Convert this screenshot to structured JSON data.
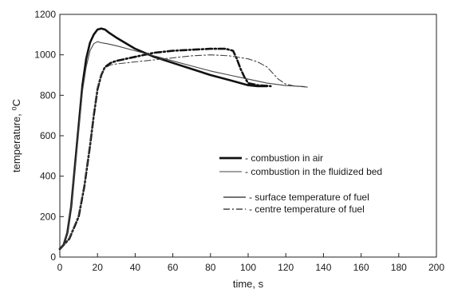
{
  "chart_data": {
    "type": "line",
    "title": "",
    "xlabel": "time, s",
    "ylabel": "temperature, ⁰C",
    "xlim": [
      0,
      200
    ],
    "ylim": [
      0,
      1200
    ],
    "xticks": [
      0,
      20,
      40,
      60,
      80,
      100,
      120,
      140,
      160,
      180,
      200
    ],
    "yticks": [
      0,
      200,
      400,
      600,
      800,
      1000,
      1200
    ],
    "grid": false,
    "legend_position": "center-right",
    "legend": {
      "line_type": [
        {
          "label": "- combustion in air",
          "style": "thick"
        },
        {
          "label": "- combustion in the fluidized bed",
          "style": "thin"
        }
      ],
      "dash_type": [
        {
          "label": "- surface temperature of fuel",
          "style": "solid"
        },
        {
          "label": "- centre temperature of fuel",
          "style": "dashdot"
        }
      ]
    },
    "series": [
      {
        "medium": "air",
        "location": "surface",
        "color": "#111111",
        "points": [
          [
            0,
            40
          ],
          [
            2,
            60
          ],
          [
            4,
            120
          ],
          [
            6,
            250
          ],
          [
            8,
            450
          ],
          [
            10,
            650
          ],
          [
            12,
            850
          ],
          [
            14,
            980
          ],
          [
            16,
            1060
          ],
          [
            18,
            1100
          ],
          [
            20,
            1125
          ],
          [
            22,
            1130
          ],
          [
            24,
            1125
          ],
          [
            26,
            1110
          ],
          [
            30,
            1085
          ],
          [
            40,
            1030
          ],
          [
            50,
            990
          ],
          [
            60,
            960
          ],
          [
            70,
            930
          ],
          [
            80,
            900
          ],
          [
            90,
            875
          ],
          [
            100,
            850
          ],
          [
            105,
            845
          ],
          [
            110,
            845
          ]
        ]
      },
      {
        "medium": "air",
        "location": "centre",
        "color": "#111111",
        "points": [
          [
            0,
            40
          ],
          [
            5,
            90
          ],
          [
            10,
            200
          ],
          [
            13,
            350
          ],
          [
            16,
            550
          ],
          [
            18,
            700
          ],
          [
            20,
            830
          ],
          [
            22,
            900
          ],
          [
            24,
            940
          ],
          [
            27,
            960
          ],
          [
            30,
            970
          ],
          [
            40,
            990
          ],
          [
            50,
            1010
          ],
          [
            60,
            1020
          ],
          [
            70,
            1025
          ],
          [
            80,
            1030
          ],
          [
            88,
            1030
          ],
          [
            92,
            1020
          ],
          [
            94,
            980
          ],
          [
            96,
            930
          ],
          [
            98,
            890
          ],
          [
            100,
            860
          ],
          [
            105,
            850
          ],
          [
            112,
            845
          ]
        ]
      },
      {
        "medium": "fluidized bed",
        "location": "surface",
        "color": "#444444",
        "points": [
          [
            0,
            40
          ],
          [
            2,
            60
          ],
          [
            4,
            120
          ],
          [
            6,
            250
          ],
          [
            8,
            430
          ],
          [
            10,
            630
          ],
          [
            12,
            820
          ],
          [
            14,
            940
          ],
          [
            16,
            1020
          ],
          [
            18,
            1055
          ],
          [
            20,
            1065
          ],
          [
            22,
            1060
          ],
          [
            25,
            1055
          ],
          [
            30,
            1045
          ],
          [
            40,
            1020
          ],
          [
            50,
            995
          ],
          [
            60,
            970
          ],
          [
            70,
            945
          ],
          [
            80,
            920
          ],
          [
            90,
            900
          ],
          [
            100,
            880
          ],
          [
            110,
            860
          ],
          [
            120,
            848
          ],
          [
            130,
            843
          ]
        ]
      },
      {
        "medium": "fluidized bed",
        "location": "centre",
        "color": "#444444",
        "points": [
          [
            0,
            40
          ],
          [
            5,
            90
          ],
          [
            10,
            210
          ],
          [
            13,
            360
          ],
          [
            16,
            560
          ],
          [
            18,
            720
          ],
          [
            20,
            840
          ],
          [
            22,
            905
          ],
          [
            24,
            935
          ],
          [
            27,
            950
          ],
          [
            30,
            955
          ],
          [
            40,
            965
          ],
          [
            50,
            975
          ],
          [
            60,
            985
          ],
          [
            70,
            995
          ],
          [
            80,
            1000
          ],
          [
            90,
            995
          ],
          [
            100,
            980
          ],
          [
            105,
            965
          ],
          [
            110,
            940
          ],
          [
            113,
            910
          ],
          [
            116,
            880
          ],
          [
            120,
            855
          ],
          [
            125,
            845
          ],
          [
            132,
            840
          ]
        ]
      }
    ]
  }
}
